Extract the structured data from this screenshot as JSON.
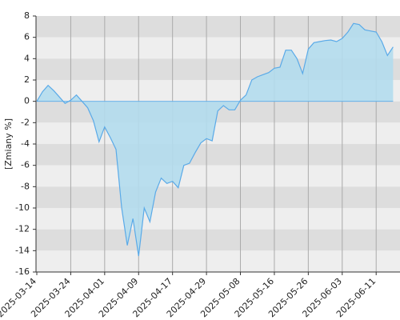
{
  "chart_data": {
    "type": "area",
    "y_label": "[Zmiany %]",
    "categories": [
      "2025-03-14",
      null,
      null,
      null,
      null,
      null,
      "2025-03-24",
      null,
      null,
      null,
      null,
      null,
      "2025-04-01",
      null,
      null,
      null,
      null,
      null,
      "2025-04-09",
      null,
      null,
      null,
      null,
      null,
      "2025-04-17",
      null,
      null,
      null,
      null,
      null,
      "2025-04-29",
      null,
      null,
      null,
      null,
      null,
      "2025-05-08",
      null,
      null,
      null,
      null,
      null,
      "2025-05-16",
      null,
      null,
      null,
      null,
      null,
      "2025-05-26",
      null,
      null,
      null,
      null,
      null,
      "2025-06-03",
      null,
      null,
      null,
      null,
      null,
      "2025-06-11",
      null,
      null,
      null
    ],
    "values": [
      0,
      0.9,
      1.5,
      1.0,
      0.4,
      -0.2,
      0.1,
      0.6,
      0,
      -0.6,
      -1.8,
      -3.8,
      -2.4,
      -3.4,
      -4.5,
      -10,
      -13.5,
      -11,
      -14.5,
      -10,
      -11.3,
      -8.5,
      -7.2,
      -7.7,
      -7.5,
      -8.1,
      -6,
      -5.8,
      -4.8,
      -3.9,
      -3.5,
      -3.7,
      -0.9,
      -0.4,
      -0.8,
      -0.8,
      0.1,
      0.6,
      2.0,
      2.3,
      2.5,
      2.7,
      3.1,
      3.2,
      4.8,
      4.8,
      4.0,
      2.6,
      4.9,
      5.5,
      5.6,
      5.7,
      5.75,
      5.6,
      5.9,
      6.5,
      7.3,
      7.2,
      6.7,
      6.6,
      6.5,
      5.6,
      4.3,
      5.1
    ],
    "color": "#5aaae8",
    "fill_color": "#b3dced",
    "ylim": [
      -16,
      8
    ],
    "yticks": [
      8,
      6,
      4,
      2,
      0,
      -2,
      -4,
      -6,
      -8,
      -10,
      -12,
      -14,
      -16
    ],
    "grid": true
  }
}
